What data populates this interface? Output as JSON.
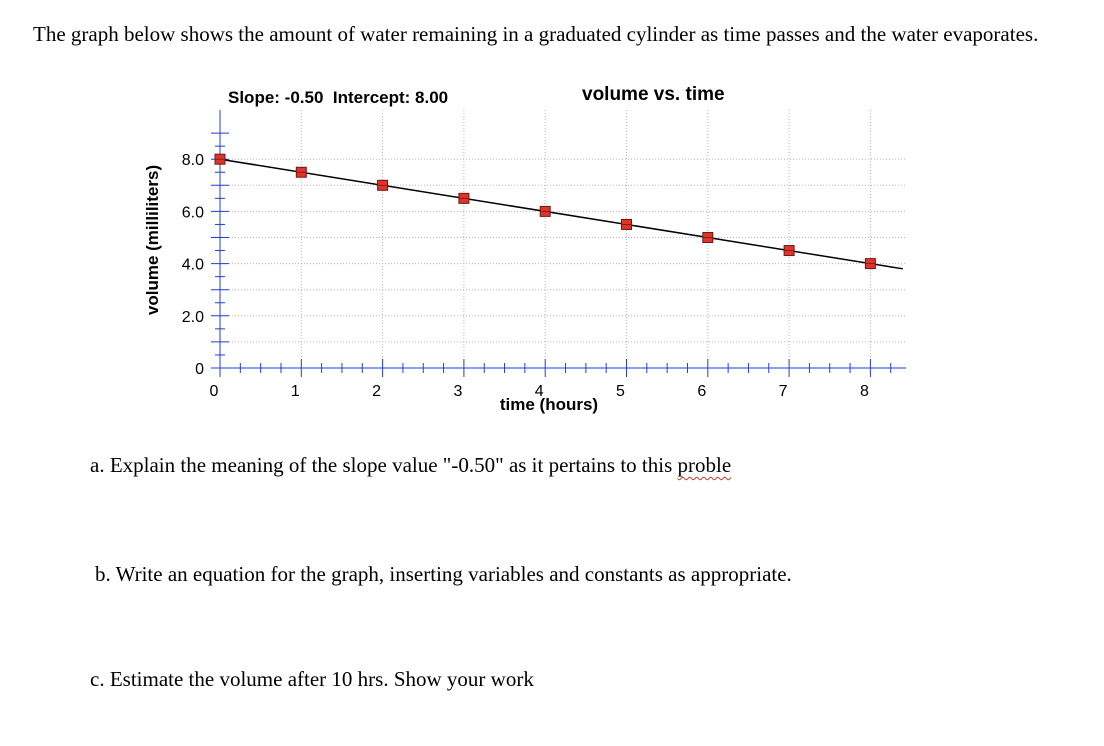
{
  "question": {
    "intro": "The graph below shows the amount of water remaining in a graduated cylinder as time passes and the water evaporates.",
    "part_a_text": "a. Explain the meaning of the slope value \"-0.50\" as it pertains to this ",
    "part_a_misspelled": "proble",
    "part_b": "b. Write an equation for the graph, inserting variables and constants as appropriate.",
    "part_c": "c. Estimate the volume after 10 hrs. Show your work"
  },
  "chart_data": {
    "type": "scatter",
    "title": "volume vs. time",
    "fit_label": "Slope: -0.50  Intercept: 8.00",
    "fit": {
      "slope": -0.5,
      "intercept": 8.0
    },
    "xlabel": "time (hours)",
    "ylabel": "volume (milliliters)",
    "xlim": [
      0,
      8.4
    ],
    "ylim": [
      0,
      9.0
    ],
    "x_ticks": [
      "0",
      "1",
      "2",
      "3",
      "4",
      "5",
      "6",
      "7",
      "8"
    ],
    "y_ticks": [
      "0",
      "2.0",
      "4.0",
      "6.0",
      "8.0"
    ],
    "grid": true,
    "series": [
      {
        "x": [
          0,
          1,
          2,
          3,
          4,
          5,
          6,
          7,
          8
        ],
        "y": [
          8.0,
          7.5,
          7.0,
          6.5,
          6.0,
          5.5,
          5.0,
          4.5,
          4.0
        ]
      }
    ],
    "marker_color": "#e0342a",
    "axis_color": "#1f3fd6",
    "line_color": "#000000"
  }
}
